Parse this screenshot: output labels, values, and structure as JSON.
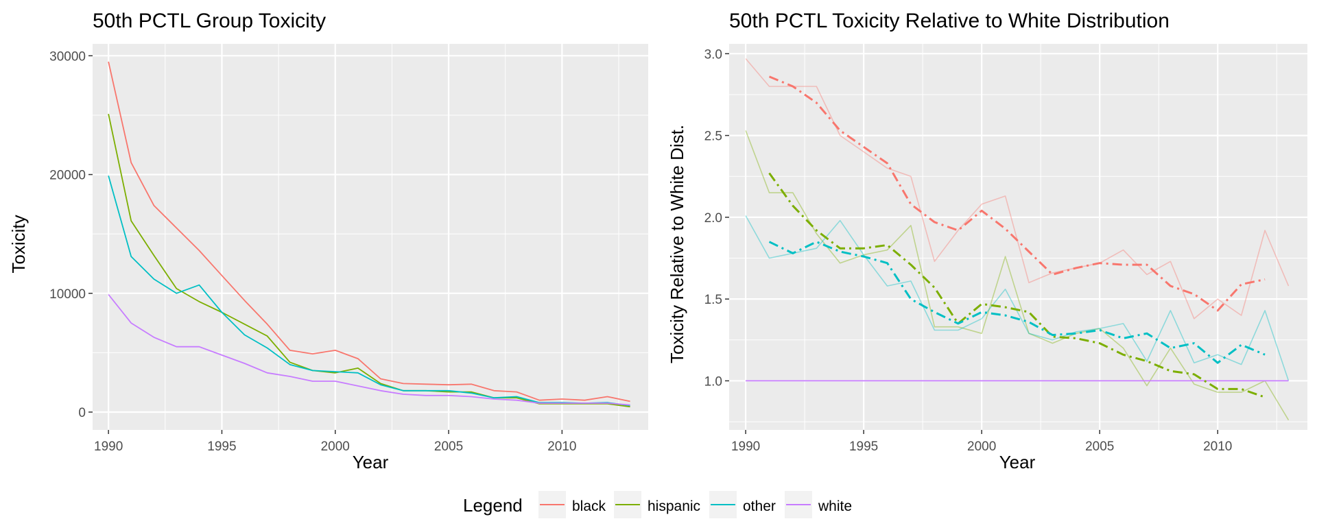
{
  "chart_data": [
    {
      "type": "line",
      "title": "50th PCTL Group Toxicity",
      "xlabel": "Year",
      "ylabel": "Toxicity",
      "xlim": [
        1989.3,
        2013.8
      ],
      "ylim": [
        -1500,
        31000
      ],
      "xticks": [
        1990,
        1995,
        2000,
        2005,
        2010
      ],
      "yticks": [
        0,
        10000,
        20000,
        30000
      ],
      "grid": true,
      "x": [
        1990,
        1991,
        1992,
        1993,
        1994,
        1995,
        1996,
        1997,
        1998,
        1999,
        2000,
        2001,
        2002,
        2003,
        2004,
        2005,
        2006,
        2007,
        2008,
        2009,
        2010,
        2011,
        2012,
        2013
      ],
      "series": [
        {
          "name": "black",
          "values": [
            29500,
            21000,
            17400,
            15500,
            13600,
            11500,
            9400,
            7400,
            5200,
            4900,
            5200,
            4500,
            2800,
            2400,
            2350,
            2300,
            2350,
            1800,
            1700,
            1000,
            1100,
            1000,
            1300,
            900
          ]
        },
        {
          "name": "hispanic",
          "values": [
            25100,
            16100,
            13200,
            10400,
            9300,
            8400,
            7400,
            6400,
            4200,
            3500,
            3300,
            3700,
            2400,
            1800,
            1800,
            1700,
            1700,
            1200,
            1200,
            700,
            700,
            700,
            700,
            450
          ]
        },
        {
          "name": "other",
          "values": [
            19900,
            13100,
            11200,
            10000,
            10700,
            8400,
            6500,
            5400,
            4000,
            3500,
            3400,
            3300,
            2300,
            1800,
            1800,
            1800,
            1600,
            1200,
            1300,
            800,
            800,
            750,
            800,
            550
          ]
        },
        {
          "name": "white",
          "values": [
            9900,
            7500,
            6300,
            5500,
            5500,
            4800,
            4100,
            3300,
            3000,
            2600,
            2600,
            2200,
            1800,
            1500,
            1400,
            1400,
            1300,
            1100,
            1000,
            750,
            750,
            750,
            750,
            600
          ]
        }
      ]
    },
    {
      "type": "line",
      "title": "50th PCTL Toxicity Relative to White Distribution",
      "xlabel": "Year",
      "ylabel": "Toxicity Relative to White Dist.",
      "xlim": [
        1989.3,
        2013.8
      ],
      "ylim": [
        0.7,
        3.06
      ],
      "xticks": [
        1990,
        1995,
        2000,
        2005,
        2010
      ],
      "yticks": [
        1.0,
        1.5,
        2.0,
        2.5,
        3.0
      ],
      "ytick_labels": [
        "1.0",
        "1.5",
        "2.0",
        "2.5",
        "3.0"
      ],
      "grid": true,
      "x": [
        1990,
        1991,
        1992,
        1993,
        1994,
        1995,
        1996,
        1997,
        1998,
        1999,
        2000,
        2001,
        2002,
        2003,
        2004,
        2005,
        2006,
        2007,
        2008,
        2009,
        2010,
        2011,
        2012,
        2013
      ],
      "series": [
        {
          "name": "black",
          "values": [
            2.97,
            2.8,
            2.8,
            2.8,
            2.5,
            2.4,
            2.3,
            2.25,
            1.73,
            1.92,
            2.08,
            2.13,
            1.6,
            1.66,
            1.69,
            1.72,
            1.8,
            1.65,
            1.73,
            1.38,
            1.5,
            1.4,
            1.92,
            1.58
          ]
        },
        {
          "name": "hispanic",
          "values": [
            2.53,
            2.15,
            2.15,
            1.9,
            1.72,
            1.77,
            1.8,
            1.95,
            1.33,
            1.33,
            1.29,
            1.76,
            1.29,
            1.23,
            1.29,
            1.32,
            1.2,
            0.97,
            1.2,
            0.98,
            0.93,
            0.93,
            1.0,
            0.76
          ]
        },
        {
          "name": "other",
          "values": [
            2.01,
            1.75,
            1.78,
            1.81,
            1.98,
            1.77,
            1.58,
            1.61,
            1.31,
            1.31,
            1.38,
            1.56,
            1.29,
            1.25,
            1.3,
            1.32,
            1.35,
            1.12,
            1.43,
            1.11,
            1.16,
            1.1,
            1.43,
            1.0
          ]
        },
        {
          "name": "white",
          "values": [
            1.0,
            1.0,
            1.0,
            1.0,
            1.0,
            1.0,
            1.0,
            1.0,
            1.0,
            1.0,
            1.0,
            1.0,
            1.0,
            1.0,
            1.0,
            1.0,
            1.0,
            1.0,
            1.0,
            1.0,
            1.0,
            1.0,
            1.0,
            1.0
          ]
        }
      ],
      "smoothed_series": [
        {
          "name": "black",
          "x": [
            1991,
            1992,
            1993,
            1994,
            1995,
            1996,
            1997,
            1998,
            1999,
            2000,
            2001,
            2002,
            2003,
            2004,
            2005,
            2006,
            2007,
            2008,
            2009,
            2010,
            2011,
            2012
          ],
          "values": [
            2.86,
            2.8,
            2.7,
            2.53,
            2.43,
            2.33,
            2.08,
            1.97,
            1.92,
            2.04,
            1.93,
            1.79,
            1.65,
            1.69,
            1.72,
            1.71,
            1.71,
            1.58,
            1.53,
            1.43,
            1.59,
            1.62
          ]
        },
        {
          "name": "hispanic",
          "x": [
            1991,
            1992,
            1993,
            1994,
            1995,
            1996,
            1997,
            1998,
            1999,
            2000,
            2001,
            2002,
            2003,
            2004,
            2005,
            2006,
            2007,
            2008,
            2009,
            2010,
            2011,
            2012
          ],
          "values": [
            2.27,
            2.07,
            1.92,
            1.81,
            1.81,
            1.83,
            1.71,
            1.57,
            1.35,
            1.47,
            1.45,
            1.42,
            1.27,
            1.26,
            1.23,
            1.16,
            1.12,
            1.06,
            1.04,
            0.95,
            0.95,
            0.9
          ]
        },
        {
          "name": "other",
          "x": [
            1991,
            1992,
            1993,
            1994,
            1995,
            1996,
            1997,
            1998,
            1999,
            2000,
            2001,
            2002,
            2003,
            2004,
            2005,
            2006,
            2007,
            2008,
            2009,
            2010,
            2011,
            2012
          ],
          "values": [
            1.85,
            1.78,
            1.85,
            1.79,
            1.76,
            1.72,
            1.5,
            1.42,
            1.35,
            1.42,
            1.4,
            1.36,
            1.28,
            1.29,
            1.31,
            1.26,
            1.29,
            1.2,
            1.23,
            1.11,
            1.22,
            1.16
          ]
        }
      ]
    }
  ],
  "legend": {
    "title": "Legend",
    "items": [
      {
        "label": "black",
        "color": "#F8766D"
      },
      {
        "label": "hispanic",
        "color": "#7CAE00"
      },
      {
        "label": "other",
        "color": "#00BFC4"
      },
      {
        "label": "white",
        "color": "#C77CFF"
      }
    ]
  },
  "colors": {
    "black": "#F8766D",
    "hispanic": "#7CAE00",
    "other": "#00BFC4",
    "white": "#C77CFF",
    "panel_background": "#EBEBEB",
    "grid": "#FFFFFF"
  }
}
